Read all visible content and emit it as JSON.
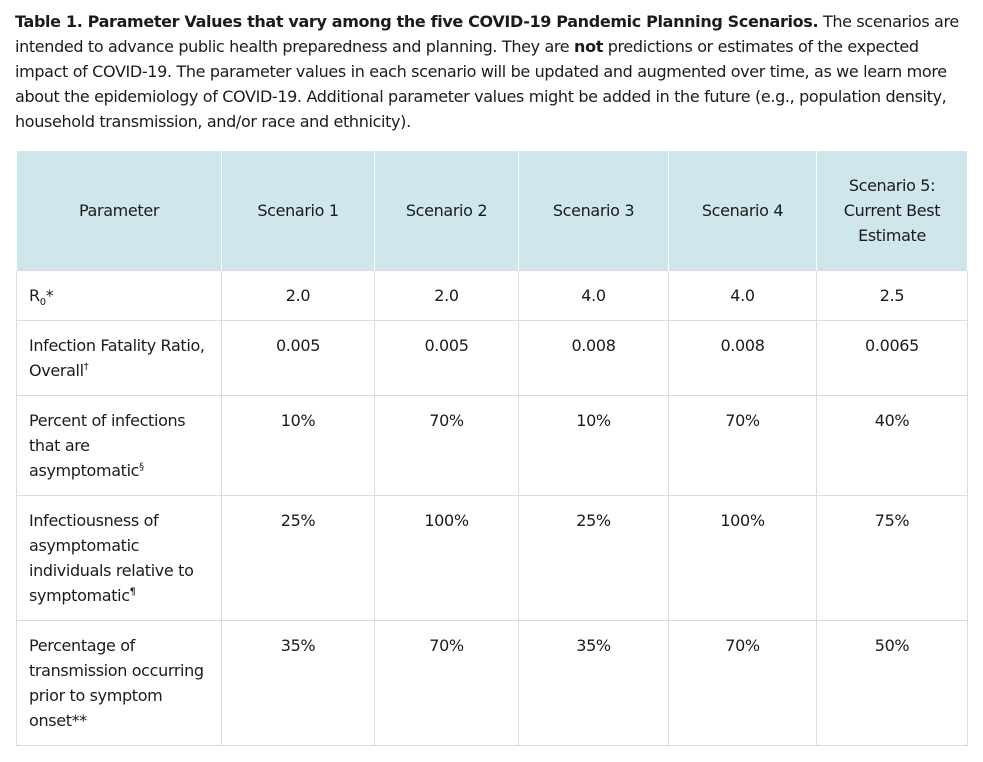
{
  "caption": {
    "title": "Table 1. Parameter Values that vary among the five COVID-19 Pandemic Planning Scenarios.",
    "text_a": " The scenarios are intended to advance public health preparedness and planning.  They are ",
    "emphasis": "not",
    "text_b": " predictions or estimates of the expected impact of COVID-19.  The parameter values in each scenario will be updated and augmented over time, as we learn more about the epidemiology of COVID-19.  Additional parameter values might be added in the future (e.g., population density, household transmission, and/or race and ethnicity)."
  },
  "table": {
    "headers": [
      "Parameter",
      "Scenario 1",
      "Scenario 2",
      "Scenario 3",
      "Scenario 4",
      "Scenario 5: Current Best Estimate"
    ],
    "rows": [
      {
        "param": {
          "main": "R",
          "sub": "0",
          "mark": "*"
        },
        "values": [
          "2.0",
          "2.0",
          "4.0",
          "4.0",
          "2.5"
        ]
      },
      {
        "param": {
          "main": "Infection Fatality Ratio, Overall",
          "sup": "†"
        },
        "values": [
          "0.005",
          "0.005",
          "0.008",
          "0.008",
          "0.0065"
        ]
      },
      {
        "param": {
          "main": "Percent of infections that are asymptomatic",
          "sup": "§"
        },
        "values": [
          "10%",
          "70%",
          "10%",
          "70%",
          "40%"
        ]
      },
      {
        "param": {
          "main": "Infectiousness of asymptomatic individuals relative to symptomatic",
          "sup": "¶"
        },
        "values": [
          "25%",
          "100%",
          "25%",
          "100%",
          "75%"
        ]
      },
      {
        "param": {
          "main": "Percentage of transmission occurring prior to symptom onset",
          "mark": "**"
        },
        "values": [
          "35%",
          "70%",
          "35%",
          "70%",
          "50%"
        ]
      }
    ]
  },
  "colors": {
    "header_bg": "#cfe7ec",
    "border": "#dcdcdc",
    "text": "#1b1b1b"
  }
}
